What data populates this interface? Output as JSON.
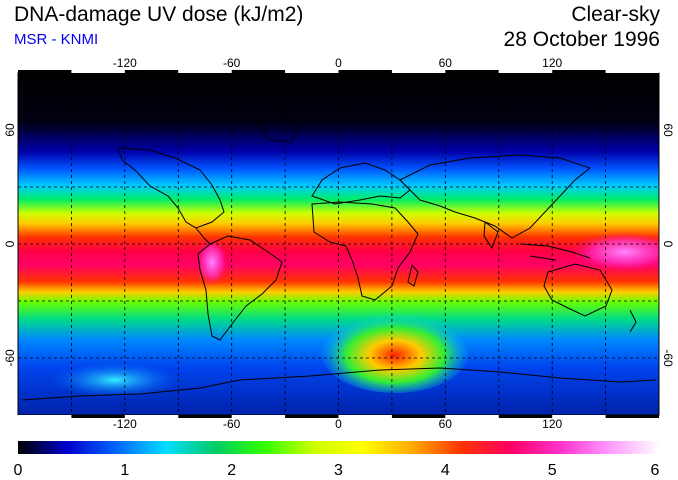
{
  "header": {
    "title": "DNA-damage UV dose (kJ/m2)",
    "source": "MSR - KNMI",
    "sky_condition": "Clear-sky",
    "date": "28 October 1996"
  },
  "map": {
    "projection": "equirectangular",
    "lon_range": [
      -180,
      180
    ],
    "lat_range": [
      -90,
      90
    ],
    "top_lon_ticks": [
      "-120",
      "-60",
      "0",
      "60",
      "120"
    ],
    "bottom_lon_ticks": [
      "-120",
      "-60",
      "0",
      "60",
      "120"
    ],
    "left_lat_ticks": [
      "60",
      "0",
      "-60"
    ],
    "right_lat_ticks": [
      "60",
      "0",
      "-60"
    ],
    "gridlines": "dashed every 30 degrees"
  },
  "colorbar": {
    "min": 0,
    "max": 6,
    "tick_labels": [
      "0",
      "1",
      "2",
      "3",
      "4",
      "5",
      "6"
    ],
    "colors": [
      "#000000",
      "#0000cc",
      "#0066ff",
      "#00ddff",
      "#00cc66",
      "#33ff00",
      "#ccff00",
      "#ffff00",
      "#ffaa00",
      "#ff3300",
      "#ff0066",
      "#ff33cc",
      "#ff99ff",
      "#ffffff"
    ]
  }
}
